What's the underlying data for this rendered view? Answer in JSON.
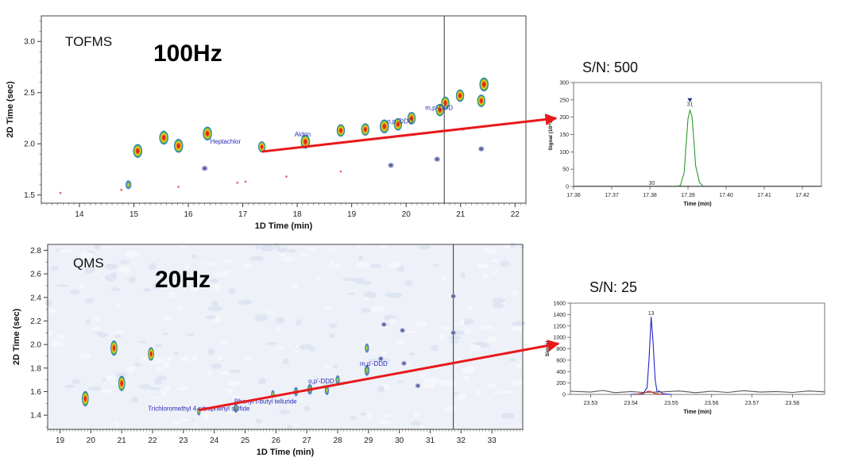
{
  "colors": {
    "arrow": "#e8191b",
    "label": "#2a2ab8",
    "mid_gray": "#666666",
    "trace_green": "#2c9a2c",
    "trace_blue": "#2323c8",
    "trace_gray": "#555555",
    "trace_red": "#cc2222",
    "noise_bg": "#eef1f8"
  },
  "chart_data": [
    {
      "type": "scatter",
      "id": "top",
      "xlabel": "1D Time (min)",
      "ylabel": "2D Time (sec)",
      "xlim": [
        13.3,
        22.2
      ],
      "ylim": [
        1.42,
        3.25
      ],
      "xticks": [
        14,
        15,
        16,
        17,
        18,
        19,
        20,
        21,
        22
      ],
      "yticks": [
        1.5,
        2.0,
        2.5,
        3.0
      ],
      "detector_label": "TOFMS",
      "rate_label": "100Hz",
      "cursor_x": 20.7,
      "points": [
        {
          "x": 15.07,
          "y": 1.93,
          "s": 1.0
        },
        {
          "x": 15.55,
          "y": 2.06,
          "s": 1.0
        },
        {
          "x": 15.82,
          "y": 1.98,
          "s": 1.0
        },
        {
          "x": 16.35,
          "y": 2.1,
          "s": 1.0
        },
        {
          "x": 17.35,
          "y": 1.97,
          "s": 0.8
        },
        {
          "x": 18.15,
          "y": 2.02,
          "s": 1.0
        },
        {
          "x": 18.8,
          "y": 2.13,
          "s": 0.9
        },
        {
          "x": 19.25,
          "y": 2.14,
          "s": 0.9
        },
        {
          "x": 19.6,
          "y": 2.17,
          "s": 1.0
        },
        {
          "x": 19.85,
          "y": 2.19,
          "s": 0.9
        },
        {
          "x": 20.1,
          "y": 2.25,
          "s": 0.9
        },
        {
          "x": 20.62,
          "y": 2.33,
          "s": 0.9
        },
        {
          "x": 20.72,
          "y": 2.4,
          "s": 0.9
        },
        {
          "x": 20.99,
          "y": 2.47,
          "s": 0.9
        },
        {
          "x": 21.38,
          "y": 2.42,
          "s": 0.9
        },
        {
          "x": 21.43,
          "y": 2.58,
          "s": 1.0
        },
        {
          "x": 14.9,
          "y": 1.6,
          "s": 0.7
        }
      ],
      "faint_points": [
        {
          "x": 16.3,
          "y": 1.76
        },
        {
          "x": 19.72,
          "y": 1.79
        },
        {
          "x": 20.57,
          "y": 1.85
        },
        {
          "x": 21.38,
          "y": 1.95
        }
      ],
      "minor_points": [
        {
          "x": 13.65,
          "y": 1.52
        },
        {
          "x": 14.77,
          "y": 1.55
        },
        {
          "x": 15.82,
          "y": 1.58
        },
        {
          "x": 16.9,
          "y": 1.62
        },
        {
          "x": 17.05,
          "y": 1.63
        },
        {
          "x": 17.8,
          "y": 1.68
        },
        {
          "x": 18.8,
          "y": 1.73
        },
        {
          "x": 21.05,
          "y": 2.14
        }
      ],
      "annotations": [
        {
          "text": "Heptachlor",
          "x": 16.4,
          "y": 2.0
        },
        {
          "text": "Aldrin",
          "x": 17.95,
          "y": 2.07
        },
        {
          "text": "o,p'-DDD",
          "x": 19.65,
          "y": 2.2
        },
        {
          "text": "m,p'-DDD",
          "x": 20.35,
          "y": 2.33
        }
      ]
    },
    {
      "type": "scatter",
      "id": "bottom",
      "xlabel": "1D Time (min)",
      "ylabel": "2D Time (sec)",
      "xlim": [
        18.6,
        34.0
      ],
      "ylim": [
        1.28,
        2.85
      ],
      "xticks": [
        19,
        20,
        21,
        22,
        23,
        24,
        25,
        26,
        27,
        28,
        29,
        30,
        31,
        32,
        33
      ],
      "yticks": [
        1.4,
        1.6,
        1.8,
        2.0,
        2.2,
        2.4,
        2.6,
        2.8
      ],
      "detector_label": "QMS",
      "rate_label": "20Hz",
      "cursor_x": 31.75,
      "points": [
        {
          "x": 19.82,
          "y": 1.54,
          "s": 0.9
        },
        {
          "x": 20.75,
          "y": 1.97,
          "s": 0.9
        },
        {
          "x": 21.0,
          "y": 1.67,
          "s": 0.9
        },
        {
          "x": 21.95,
          "y": 1.92,
          "s": 0.8
        },
        {
          "x": 23.5,
          "y": 1.43,
          "s": 0.5
        },
        {
          "x": 24.7,
          "y": 1.46,
          "s": 0.6
        },
        {
          "x": 25.9,
          "y": 1.58,
          "s": 0.5
        },
        {
          "x": 26.65,
          "y": 1.6,
          "s": 0.6
        },
        {
          "x": 27.1,
          "y": 1.62,
          "s": 0.7
        },
        {
          "x": 27.65,
          "y": 1.61,
          "s": 0.6
        },
        {
          "x": 28.0,
          "y": 1.7,
          "s": 0.6
        },
        {
          "x": 28.95,
          "y": 1.78,
          "s": 0.7
        },
        {
          "x": 28.95,
          "y": 1.97,
          "s": 0.6
        }
      ],
      "faint_points": [
        {
          "x": 29.5,
          "y": 2.17
        },
        {
          "x": 30.1,
          "y": 2.12
        },
        {
          "x": 30.15,
          "y": 1.84
        },
        {
          "x": 30.6,
          "y": 1.65
        },
        {
          "x": 31.75,
          "y": 2.1
        },
        {
          "x": 31.75,
          "y": 2.41
        },
        {
          "x": 29.4,
          "y": 1.88
        }
      ],
      "annotations": [
        {
          "text": "Phenyl t-butyl telluride",
          "x": 24.65,
          "y": 1.5
        },
        {
          "text": "Trichloromethyl 4-nitrophenyl sulfide",
          "x": 21.85,
          "y": 1.44
        },
        {
          "text": "o,p'-DDD",
          "x": 27.05,
          "y": 1.67
        },
        {
          "text": "m,p'-DDD",
          "x": 28.72,
          "y": 1.82
        }
      ]
    },
    {
      "type": "line",
      "id": "chrom1",
      "title": "S/N: 500",
      "xlabel": "Time (min)",
      "ylabel": "Signal (10^3)",
      "xlim": [
        17.36,
        17.425
      ],
      "ylim": [
        0,
        300
      ],
      "xticks": [
        "17.36",
        "17.37",
        "17.38",
        "17.39",
        "17.40",
        "17.41",
        "17.42"
      ],
      "yticks": [
        0,
        50,
        100,
        150,
        200,
        250,
        300
      ],
      "series": [
        {
          "color": "green",
          "x": [
            17.385,
            17.387,
            17.388,
            17.389,
            17.3895,
            17.39,
            17.3905,
            17.391,
            17.3915,
            17.392,
            17.393,
            17.394,
            17.396
          ],
          "y": [
            0,
            0,
            3,
            40,
            120,
            195,
            220,
            205,
            140,
            60,
            12,
            1,
            0
          ]
        },
        {
          "color": "gray",
          "x": [
            17.36,
            17.425
          ],
          "y": [
            1,
            1
          ]
        }
      ],
      "peak_labels": [
        {
          "text": "31",
          "x": 17.3905,
          "y": 232
        },
        {
          "text": "30",
          "x": 17.3805,
          "y": 5
        }
      ],
      "marker": {
        "x": 17.3905,
        "y": 248
      }
    },
    {
      "type": "line",
      "id": "chrom2",
      "title": "S/N: 25",
      "xlabel": "Time (min)",
      "ylabel": "Signal",
      "xlim": [
        23.525,
        23.588
      ],
      "ylim": [
        0,
        1600
      ],
      "xticks": [
        "23.53",
        "23.54",
        "23.55",
        "23.56",
        "23.57",
        "23.58"
      ],
      "yticks": [
        0,
        200,
        400,
        600,
        800,
        1000,
        1200,
        1400,
        1600
      ],
      "series": [
        {
          "color": "blue",
          "x": [
            23.54,
            23.543,
            23.544,
            23.5445,
            23.545,
            23.5455,
            23.546,
            23.5465,
            23.547,
            23.548,
            23.55
          ],
          "y": [
            0,
            10,
            120,
            620,
            1360,
            900,
            250,
            40,
            60,
            10,
            0
          ]
        },
        {
          "color": "gray",
          "x": [
            23.525,
            23.53,
            23.533,
            23.536,
            23.54,
            23.543,
            23.548,
            23.552,
            23.556,
            23.56,
            23.564,
            23.568,
            23.572,
            23.576,
            23.58,
            23.584,
            23.588
          ],
          "y": [
            55,
            40,
            70,
            30,
            50,
            35,
            45,
            60,
            30,
            55,
            35,
            65,
            40,
            50,
            35,
            60,
            45
          ]
        },
        {
          "color": "red",
          "x": [
            23.541,
            23.543,
            23.5445,
            23.546,
            23.548
          ],
          "y": [
            0,
            20,
            60,
            15,
            0
          ]
        }
      ],
      "peak_labels": [
        {
          "text": "13",
          "x": 23.545,
          "y": 1390
        }
      ]
    }
  ]
}
